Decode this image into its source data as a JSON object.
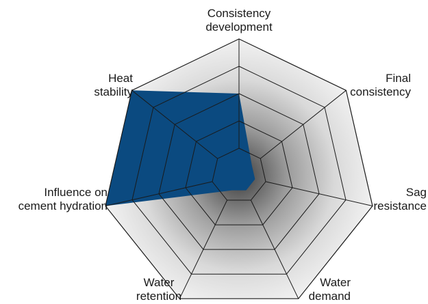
{
  "chart_data": {
    "type": "radar",
    "axes": [
      "Consistency development",
      "Final consistency",
      "Sag resistance",
      "Water demand",
      "Water retention",
      "Influence on cement hydration",
      "Heat stability"
    ],
    "axis_label_lines": [
      [
        "Consistency",
        "development"
      ],
      [
        "Final",
        "consistency"
      ],
      [
        "Sag",
        "resistance"
      ],
      [
        "Water",
        "demand"
      ],
      [
        "Water",
        "retention"
      ],
      [
        "Influence on",
        "cement hydration"
      ],
      [
        "Heat",
        "stability"
      ]
    ],
    "scale": {
      "min": 0,
      "max": 5,
      "rings": 5
    },
    "series": [
      {
        "values": [
          3,
          0,
          0,
          0,
          0,
          5,
          5
        ],
        "color": "#0b4a80"
      }
    ],
    "colors": {
      "background_outer": "#f2f2f2",
      "background_center": "#3c3c3c",
      "grid": "#1a1a1a"
    }
  }
}
